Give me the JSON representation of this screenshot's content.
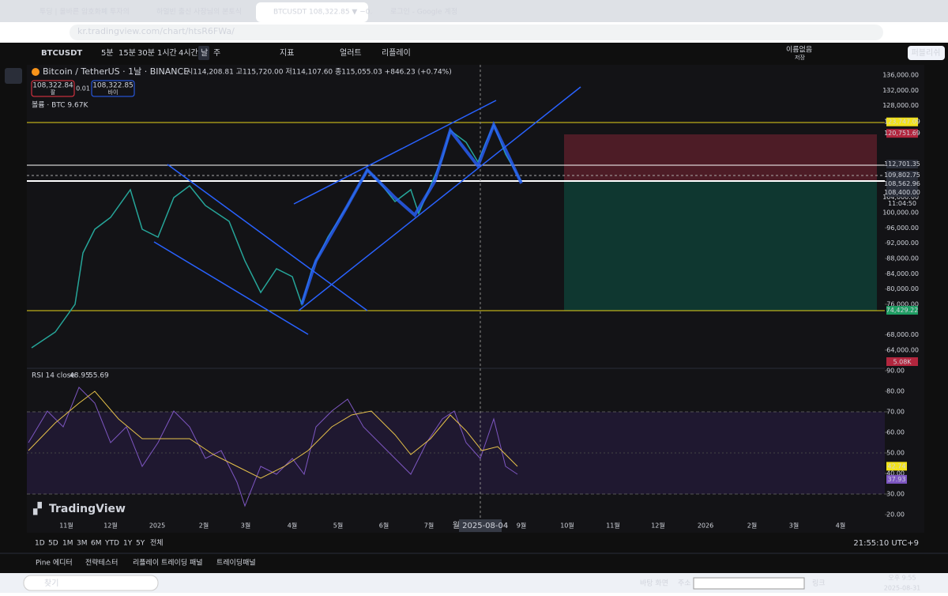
{
  "browser": {
    "tabs": [
      "투딩 | 올바른 암호화폐 투자의",
      "하얼빈 출신 사장님의 본토식",
      "BTCUSDT 108,322.85 ▼ −0.45",
      "로그인 - Google 계정"
    ],
    "url": "kr.tradingview.com/chart/htsR6FWa/"
  },
  "toolbar": {
    "symbol": "BTCUSDT",
    "intervals": [
      "5분",
      "15분",
      "30분",
      "1시간",
      "4시간",
      "날",
      "주"
    ],
    "indicators": "지표",
    "alert": "얼러트",
    "replay": "리플레이",
    "layout_name": "이름없음",
    "saved": "저장",
    "publish": "퍼블리쉬"
  },
  "legend": {
    "title": "Bitcoin / TetherUS · 1날 · BINANCE",
    "ohlc": "시114,208.81 고115,720.00 저114,107.60 종115,055.03 +846.23 (+0.74%)",
    "sell_price": "108,322.84",
    "sell": "팔",
    "spread": "0.01",
    "buy_price": "108,322.85",
    "buy": "바이",
    "volume": "볼륨 · BTC 9.67K"
  },
  "price_axis": {
    "lim": [
      62000,
      137000
    ],
    "ticks": [
      {
        "value": 136000,
        "label": "136,000.00"
      },
      {
        "value": 132000,
        "label": "132,000.00"
      },
      {
        "value": 128000,
        "label": "128,000.00"
      },
      {
        "value": 104000,
        "label": "104,000.00"
      },
      {
        "value": 100000,
        "label": "100,000.00"
      },
      {
        "value": 96000,
        "label": "96,000.00"
      },
      {
        "value": 92000,
        "label": "92,000.00"
      },
      {
        "value": 88000,
        "label": "88,000.00"
      },
      {
        "value": 84000,
        "label": "84,000.00"
      },
      {
        "value": 80000,
        "label": "80,000.00"
      },
      {
        "value": 76000,
        "label": "76,000.00"
      },
      {
        "value": 68000,
        "label": "68,000.00"
      },
      {
        "value": 64000,
        "label": "64,000.00"
      }
    ],
    "tags": [
      {
        "value": 123747.09,
        "label": "123,747.09",
        "color": "#f2e21b"
      },
      {
        "value": 120751.69,
        "label": "120,751.69",
        "color": "#b2263e"
      },
      {
        "value": 112701.35,
        "label": "112,701.35",
        "color": "#2a2e39"
      },
      {
        "value": 108562.96,
        "label": "108,562.96",
        "color": "#2a2e39"
      },
      {
        "value": 108400,
        "label": "108,400.00",
        "color": "#2a2e39"
      },
      {
        "value": 109802.75,
        "label": "109,802.75",
        "color": "#2a2e39"
      },
      {
        "value": 74429.22,
        "label": "74,429.22",
        "color": "#1e9e63"
      }
    ],
    "countdown": "11:04:50",
    "volume_tag": "5.08K"
  },
  "rsi": {
    "label": "RSI 14 close",
    "value": "48.95",
    "ma": "55.69",
    "lim": [
      18,
      92
    ],
    "ticks": [
      {
        "value": 90,
        "label": "90.00"
      },
      {
        "value": 80,
        "label": "80.00"
      },
      {
        "value": 70,
        "label": "70.00"
      },
      {
        "value": 60,
        "label": "60.00"
      },
      {
        "value": 50,
        "label": "50.00"
      },
      {
        "value": 40,
        "label": "40.00"
      },
      {
        "value": 30,
        "label": "30.00"
      },
      {
        "value": 20,
        "label": "20.00"
      }
    ],
    "tags": [
      {
        "value": 42.74,
        "label": "42.74",
        "color": "#f2e21b"
      },
      {
        "value": 37.93,
        "label": "37.93",
        "color": "#7e57c2"
      }
    ]
  },
  "time_axis": {
    "months": [
      "11월",
      "12월",
      "2025",
      "2월",
      "3월",
      "4월",
      "5월",
      "6월",
      "7월",
      "9월",
      "10월",
      "11월",
      "12월",
      "2026",
      "2월",
      "3월",
      "4월"
    ],
    "cursor_date": "월 2025-08-04"
  },
  "logo": "TradingView",
  "bottom": {
    "ranges": [
      "1D",
      "5D",
      "1M",
      "3M",
      "6M",
      "YTD",
      "1Y",
      "5Y",
      "전체"
    ],
    "clock": "21:55:10 UTC+9"
  },
  "panels": [
    "Pine 에디터",
    "전략테스터",
    "리플레이 트레이딩 패널",
    "트레이딩패널"
  ],
  "taskbar": {
    "search": "찾기",
    "desktop": "바탕 화면",
    "address": "주소",
    "links": "링크",
    "time": "오후 9:55",
    "date": "2025-08-31"
  }
}
